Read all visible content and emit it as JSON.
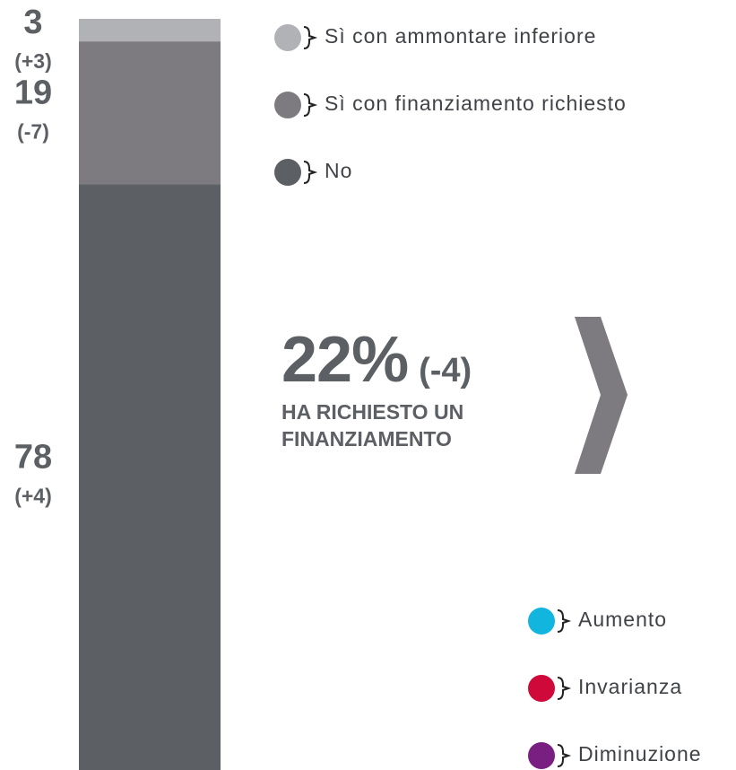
{
  "chart_data": {
    "type": "stacked_bar",
    "ylim": [
      0,
      100
    ],
    "series": [
      {
        "name": "Sì con ammontare inferiore",
        "color": "#b0b2b6",
        "values": [
          3
        ],
        "change": "(+3)"
      },
      {
        "name": "Sì con finanziamento richiesto",
        "color": "#7d7b7f",
        "values": [
          19
        ],
        "change": "(-7)"
      },
      {
        "name": "No",
        "color": "#5c5f63",
        "values": [
          78
        ],
        "change": "(+4)"
      }
    ],
    "headline": {
      "label": "22%",
      "change": "(-4)",
      "text": "HA RICHIESTO UN FINANZIAMENTO"
    },
    "legend2": [
      {
        "name": "Aumento",
        "color": "#12b5dd"
      },
      {
        "name": "Invarianza",
        "color": "#cf0a3a"
      },
      {
        "name": "Diminuzione",
        "color": "#7a1f82"
      }
    ]
  }
}
